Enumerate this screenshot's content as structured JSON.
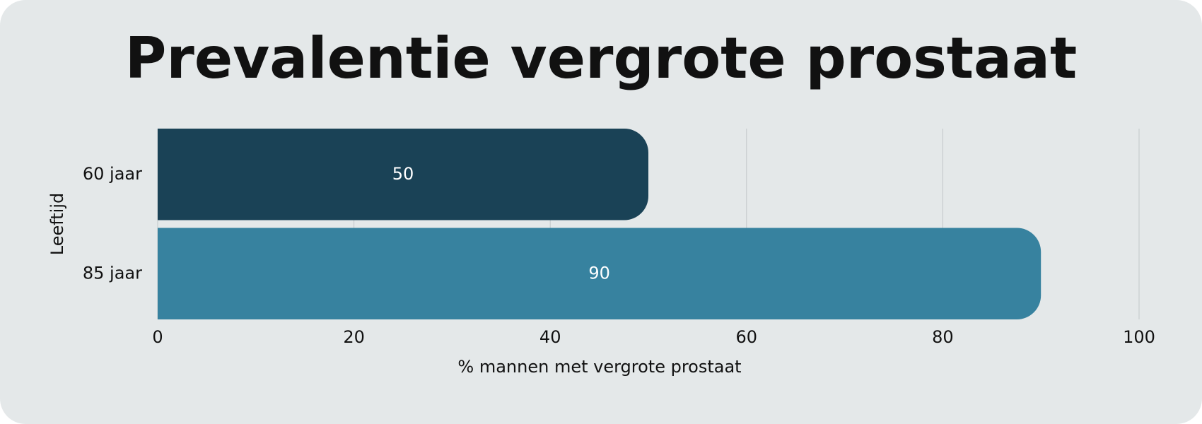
{
  "chart_data": {
    "type": "bar",
    "orientation": "horizontal",
    "title": "Prevalentie vergrote prostaat",
    "categories": [
      "60 jaar",
      "85 jaar"
    ],
    "values": [
      50,
      90
    ],
    "colors": [
      "#1a4256",
      "#37829f"
    ],
    "x_label": "% mannen met vergrote prostaat",
    "y_label": "Leeftijd",
    "xlim": [
      0,
      100
    ],
    "xticks": [
      0,
      20,
      40,
      60,
      80,
      100
    ],
    "grid": true
  }
}
